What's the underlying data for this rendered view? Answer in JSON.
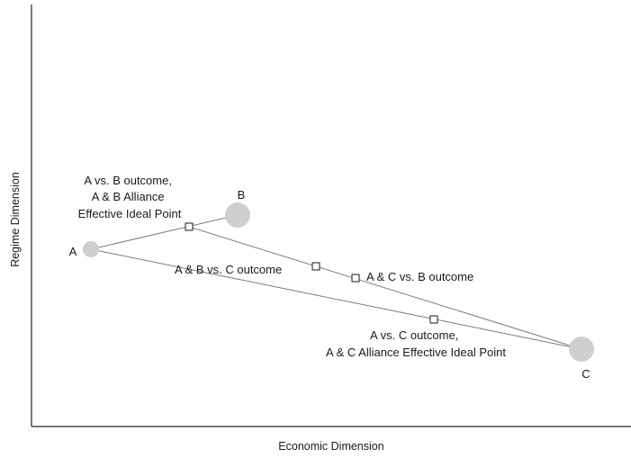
{
  "axes": {
    "x_title": "Economic Dimension",
    "y_title": "Regime Dimension"
  },
  "actors": [
    {
      "id": "A",
      "label": "A",
      "size": "small"
    },
    {
      "id": "B",
      "label": "B",
      "size": "large"
    },
    {
      "id": "C",
      "label": "C",
      "size": "large"
    }
  ],
  "outcomes": [
    {
      "id": "ab",
      "lines": [
        "A vs. B outcome,",
        "A & B Alliance",
        "Effective Ideal Point"
      ]
    },
    {
      "id": "ab_c",
      "lines": [
        "A & B vs. C outcome"
      ]
    },
    {
      "id": "ac_b",
      "lines": [
        "A & C vs. B outcome"
      ]
    },
    {
      "id": "ac",
      "lines": [
        "A vs. C outcome,",
        "A & C Alliance Effective Ideal Point"
      ]
    }
  ]
}
